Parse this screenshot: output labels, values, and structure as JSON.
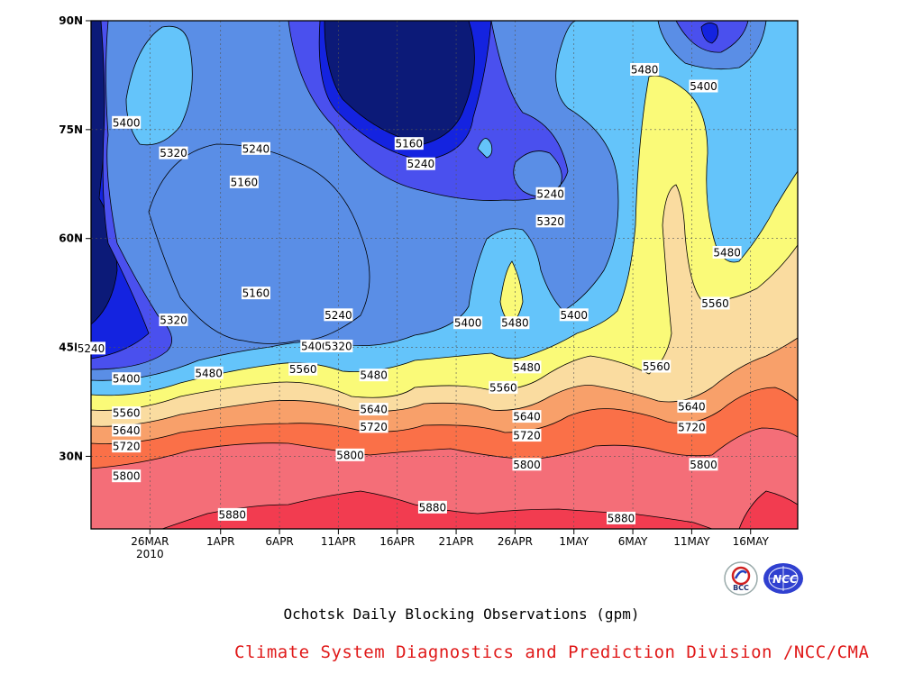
{
  "chart_data": {
    "type": "heatmap",
    "title": "Ochotsk Daily Blocking Observations (gpm)",
    "xlabel": "",
    "ylabel": "",
    "x_ticks": [
      "26MAR",
      "1APR",
      "6APR",
      "11APR",
      "16APR",
      "21APR",
      "26APR",
      "1MAY",
      "6MAY",
      "11MAY",
      "16MAY"
    ],
    "x_tick_sub": "2010",
    "y_ticks": [
      "30N",
      "45N",
      "60N",
      "75N",
      "90N"
    ],
    "ylim": [
      20,
      90
    ],
    "x_range": [
      "2010-03-21",
      "2010-05-20"
    ],
    "grid": true,
    "contour_levels": [
      5160,
      5240,
      5320,
      5400,
      5480,
      5560,
      5640,
      5720,
      5800,
      5880
    ],
    "fill_colors": [
      "#0c1a78",
      "#1423e0",
      "#4a50ee",
      "#5a8ee6",
      "#64c4fa",
      "#fafa78",
      "#fadca0",
      "#f8a06a",
      "#fa7048",
      "#f46e78",
      "#f23c50"
    ],
    "contour_labels": [
      {
        "text": "5400",
        "x": "2010-03-24",
        "y": 76.0
      },
      {
        "text": "5320",
        "x": "2010-03-28",
        "y": 71.8
      },
      {
        "text": "5240",
        "x": "2010-04-04",
        "y": 72.4
      },
      {
        "text": "5160",
        "x": "2010-04-03",
        "y": 67.8
      },
      {
        "text": "5160",
        "x": "2010-04-04",
        "y": 52.5
      },
      {
        "text": "5320",
        "x": "2010-03-28",
        "y": 48.8
      },
      {
        "text": "5240",
        "x": "2010-03-21",
        "y": 44.9
      },
      {
        "text": "5240",
        "x": "2010-04-11",
        "y": 49.5
      },
      {
        "text": "5400",
        "x": "2010-04-09",
        "y": 45.2
      },
      {
        "text": "5320",
        "x": "2010-04-11",
        "y": 45.2
      },
      {
        "text": "5160",
        "x": "2010-04-17",
        "y": 73.1
      },
      {
        "text": "5240",
        "x": "2010-04-18",
        "y": 70.3
      },
      {
        "text": "5240",
        "x": "2010-04-29",
        "y": 66.2
      },
      {
        "text": "5320",
        "x": "2010-04-29",
        "y": 62.4
      },
      {
        "text": "5400",
        "x": "2010-04-22",
        "y": 48.4
      },
      {
        "text": "5480",
        "x": "2010-04-26",
        "y": 48.4
      },
      {
        "text": "5400",
        "x": "2010-05-01",
        "y": 49.5
      },
      {
        "text": "5480",
        "x": "2010-04-27",
        "y": 42.3
      },
      {
        "text": "5480",
        "x": "2010-05-07",
        "y": 83.3
      },
      {
        "text": "5400",
        "x": "2010-05-12",
        "y": 81.0
      },
      {
        "text": "5480",
        "x": "2010-05-14",
        "y": 58.1
      },
      {
        "text": "5560",
        "x": "2010-05-13",
        "y": 51.1
      },
      {
        "text": "5560",
        "x": "2010-05-08",
        "y": 42.4
      },
      {
        "text": "5400",
        "x": "2010-03-24",
        "y": 40.7
      },
      {
        "text": "5480",
        "x": "2010-03-31",
        "y": 41.5
      },
      {
        "text": "5560",
        "x": "2010-04-08",
        "y": 42.0
      },
      {
        "text": "5480",
        "x": "2010-04-14",
        "y": 41.2
      },
      {
        "text": "5560",
        "x": "2010-04-25",
        "y": 39.5
      },
      {
        "text": "5560",
        "x": "2010-03-24",
        "y": 36.0
      },
      {
        "text": "5640",
        "x": "2010-03-24",
        "y": 33.6
      },
      {
        "text": "5720",
        "x": "2010-03-24",
        "y": 31.4
      },
      {
        "text": "5640",
        "x": "2010-04-14",
        "y": 36.5
      },
      {
        "text": "5720",
        "x": "2010-04-14",
        "y": 34.1
      },
      {
        "text": "5800",
        "x": "2010-04-12",
        "y": 30.2
      },
      {
        "text": "5640",
        "x": "2010-04-27",
        "y": 35.5
      },
      {
        "text": "5720",
        "x": "2010-04-27",
        "y": 32.9
      },
      {
        "text": "5800",
        "x": "2010-04-27",
        "y": 28.9
      },
      {
        "text": "5640",
        "x": "2010-05-11",
        "y": 36.9
      },
      {
        "text": "5720",
        "x": "2010-05-11",
        "y": 34.0
      },
      {
        "text": "5800",
        "x": "2010-05-12",
        "y": 28.9
      },
      {
        "text": "5800",
        "x": "2010-03-24",
        "y": 27.3
      },
      {
        "text": "5880",
        "x": "2010-04-02",
        "y": 22.0
      },
      {
        "text": "5880",
        "x": "2010-04-19",
        "y": 23.0
      },
      {
        "text": "5880",
        "x": "2010-05-05",
        "y": 21.5
      }
    ]
  },
  "credit": "Climate System Diagnostics and Prediction Division /NCC/CMA",
  "logos": {
    "left": {
      "text": "BCC",
      "icon": "bcc-logo-icon"
    },
    "right": {
      "text": "NCC",
      "icon": "ncc-logo-icon"
    }
  },
  "colors": {
    "credit": "#e01a1a",
    "frame": "#000000"
  }
}
